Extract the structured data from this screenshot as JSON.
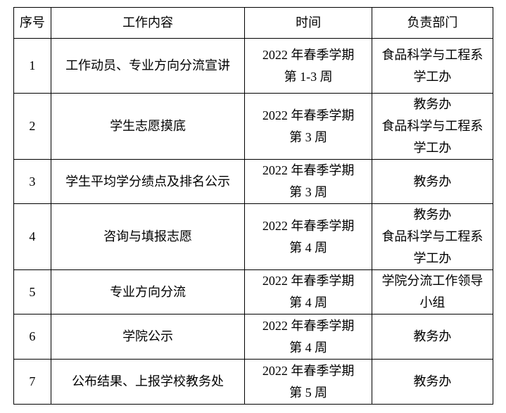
{
  "headers": [
    "序号",
    "工作内容",
    "时间",
    "负责部门"
  ],
  "rows": [
    {
      "no": "1",
      "task": "工作动员、专业方向分流宣讲",
      "time": [
        "2022 年春季学期",
        "第 1-3 周"
      ],
      "dept": [
        "食品科学与工程系",
        "学工办"
      ]
    },
    {
      "no": "2",
      "task": "学生志愿摸底",
      "time": [
        "2022 年春季学期",
        "第 3 周"
      ],
      "dept": [
        "教务办",
        "食品科学与工程系",
        "学工办"
      ]
    },
    {
      "no": "3",
      "task": "学生平均学分绩点及排名公示",
      "time": [
        "2022 年春季学期",
        "第 3 周"
      ],
      "dept": [
        "教务办"
      ]
    },
    {
      "no": "4",
      "task": "咨询与填报志愿",
      "time": [
        "2022 年春季学期",
        "第 4 周"
      ],
      "dept": [
        "教务办",
        "食品科学与工程系",
        "学工办"
      ]
    },
    {
      "no": "5",
      "task": "专业方向分流",
      "time": [
        "2022 年春季学期",
        "第 4 周"
      ],
      "dept": [
        "学院分流工作领导",
        "小组"
      ]
    },
    {
      "no": "6",
      "task": "学院公示",
      "time": [
        "2022 年春季学期",
        "第 4 周"
      ],
      "dept": [
        "教务办"
      ]
    },
    {
      "no": "7",
      "task": "公布结果、上报学校教务处",
      "time": [
        "2022 年春季学期",
        "第 5 周"
      ],
      "dept": [
        "教务办"
      ]
    }
  ]
}
